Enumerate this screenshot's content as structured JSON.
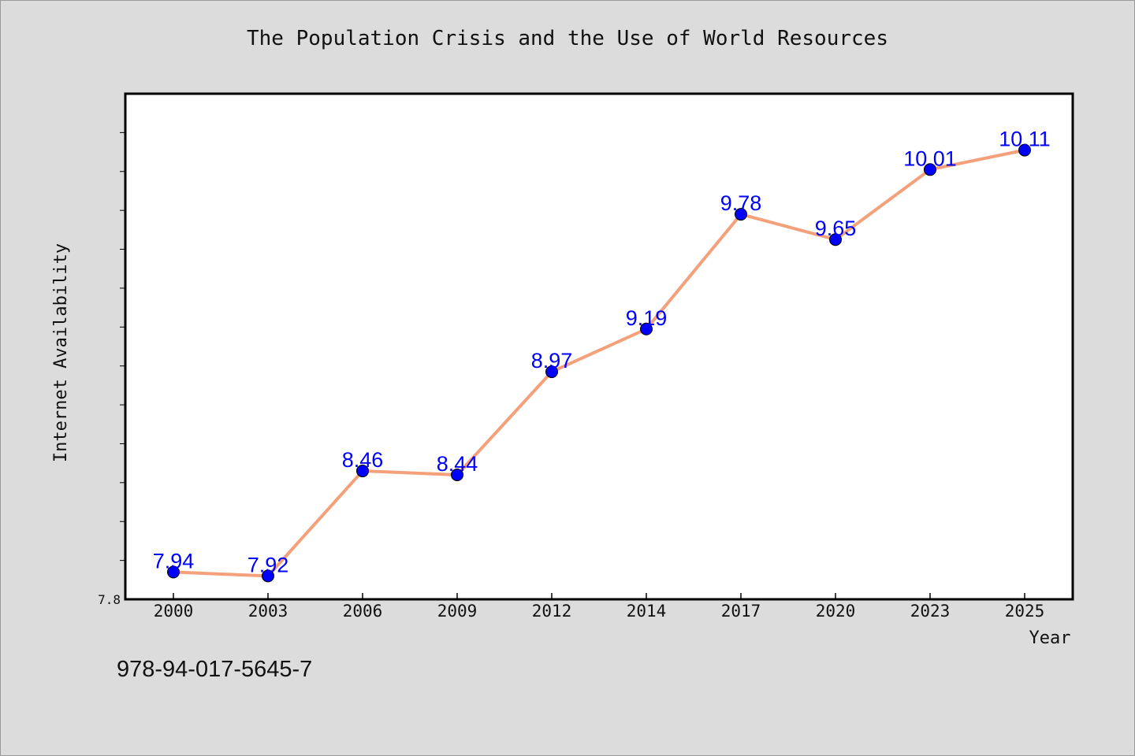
{
  "title": "The Population Crisis and the Use of World Resources",
  "footer_code": "978-94-017-5645-7",
  "colors": {
    "background": "#dcdcdc",
    "plot_background": "#ffffff",
    "line": "#f4a07a",
    "marker": "#0000ff",
    "data_label": "#0000ff"
  },
  "chart_data": {
    "type": "line",
    "xlabel": "Year",
    "ylabel": "Internet Availability",
    "categories": [
      "2000",
      "2003",
      "2006",
      "2009",
      "2012",
      "2014",
      "2017",
      "2020",
      "2023",
      "2025"
    ],
    "series": [
      {
        "values": [
          7.94,
          7.92,
          8.46,
          8.44,
          8.97,
          9.19,
          9.78,
          9.65,
          10.01,
          10.11
        ]
      }
    ],
    "data_labels": [
      "7.94",
      "7.92",
      "8.46",
      "8.44",
      "8.97",
      "9.19",
      "9.78",
      "9.65",
      "10.01",
      "10.11"
    ],
    "ylim": [
      7.8,
      10.4
    ],
    "ytick_labels": [
      {
        "value": 7.8,
        "label": "7.8"
      }
    ],
    "grid": false,
    "legend": "none"
  }
}
